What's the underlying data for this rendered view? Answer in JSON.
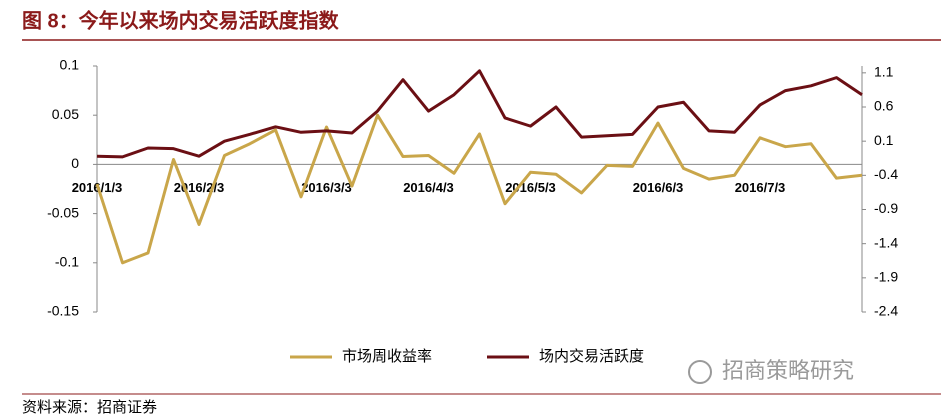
{
  "chart_data": {
    "type": "line",
    "title": "图 8：今年以来场内交易活跃度指数",
    "source": "资料来源：招商证券",
    "watermark": "招商策略研究",
    "categories": [
      "2016/1/3",
      null,
      null,
      null,
      "2016/2/3",
      null,
      null,
      null,
      null,
      "2016/3/3",
      null,
      null,
      null,
      "2016/4/3",
      null,
      null,
      null,
      "2016/5/3",
      null,
      null,
      null,
      null,
      "2016/6/3",
      null,
      null,
      null,
      "2016/7/3",
      null,
      null,
      null,
      null
    ],
    "series": [
      {
        "name": "市场周收益率",
        "color": "#c9a64a",
        "axis": "y",
        "values": [
          -0.02,
          -0.1,
          -0.09,
          0.005,
          -0.061,
          0.009,
          0.021,
          0.035,
          -0.033,
          0.038,
          -0.022,
          0.05,
          0.008,
          0.009,
          -0.009,
          0.031,
          -0.04,
          -0.008,
          -0.01,
          -0.029,
          -0.001,
          -0.002,
          0.042,
          -0.004,
          -0.015,
          -0.011,
          0.027,
          0.018,
          0.021,
          -0.014,
          -0.011
        ]
      },
      {
        "name": "场内交易活跃度",
        "color": "#6b0f14",
        "axis": "y2",
        "values": [
          -0.12,
          -0.13,
          0.0,
          -0.01,
          -0.12,
          0.1,
          0.2,
          0.31,
          0.23,
          0.25,
          0.22,
          0.54,
          1.0,
          0.54,
          0.78,
          1.13,
          0.44,
          0.32,
          0.6,
          0.16,
          0.18,
          0.2,
          0.6,
          0.67,
          0.25,
          0.23,
          0.63,
          0.84,
          0.91,
          1.03,
          0.78
        ]
      }
    ],
    "ylim": [
      -0.15,
      0.1
    ],
    "yticks": [
      0.1,
      0.05,
      0,
      -0.05,
      -0.1,
      -0.15
    ],
    "y2lim": [
      -2.4,
      1.2
    ],
    "y2ticks": [
      1.1,
      0.6,
      0.1,
      -0.4,
      -0.9,
      -1.4,
      -1.9,
      -2.4
    ],
    "legend": "bottom"
  }
}
